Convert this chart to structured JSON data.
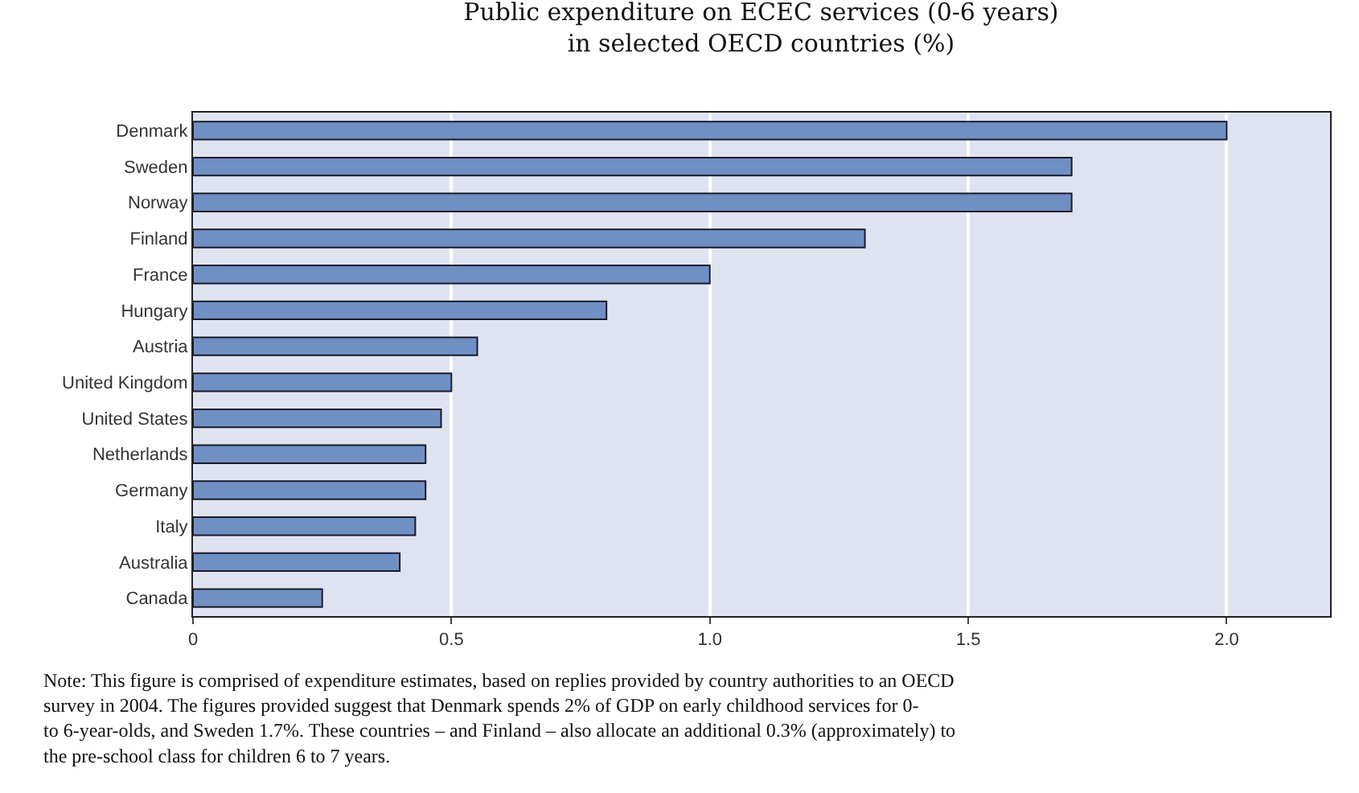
{
  "chart_data": {
    "type": "bar",
    "orientation": "horizontal",
    "title": "Public expenditure on ECEC services (0-6 years)\nin selected OECD countries (%)",
    "categories": [
      "Denmark",
      "Sweden",
      "Norway",
      "Finland",
      "France",
      "Hungary",
      "Austria",
      "United Kingdom",
      "United States",
      "Netherlands",
      "Germany",
      "Italy",
      "Australia",
      "Canada"
    ],
    "values": [
      2.0,
      1.7,
      1.7,
      1.3,
      1.0,
      0.8,
      0.55,
      0.5,
      0.48,
      0.45,
      0.45,
      0.43,
      0.4,
      0.25
    ],
    "color": "#7090c4",
    "xlim": [
      0,
      2.2
    ],
    "xticks": [
      0,
      0.5,
      {
        "value": 1,
        "label": "1.0"
      },
      1.5,
      {
        "value": 2,
        "label": "2.0"
      }
    ],
    "grid": "x",
    "legend": false,
    "annotations": [
      "Note: This figure is comprised of expenditure estimates, based on replies provided by country authorities to an OECD\nsurvey in 2004. The figures provided suggest that Denmark spends 2% of GDP on early childhood services for 0-\nto 6-year-olds, and Sweden 1.7%. These countries – and Finland – also allocate an additional 0.3% (approximately) to\nthe pre-school class for children 6 to 7 years."
    ]
  }
}
